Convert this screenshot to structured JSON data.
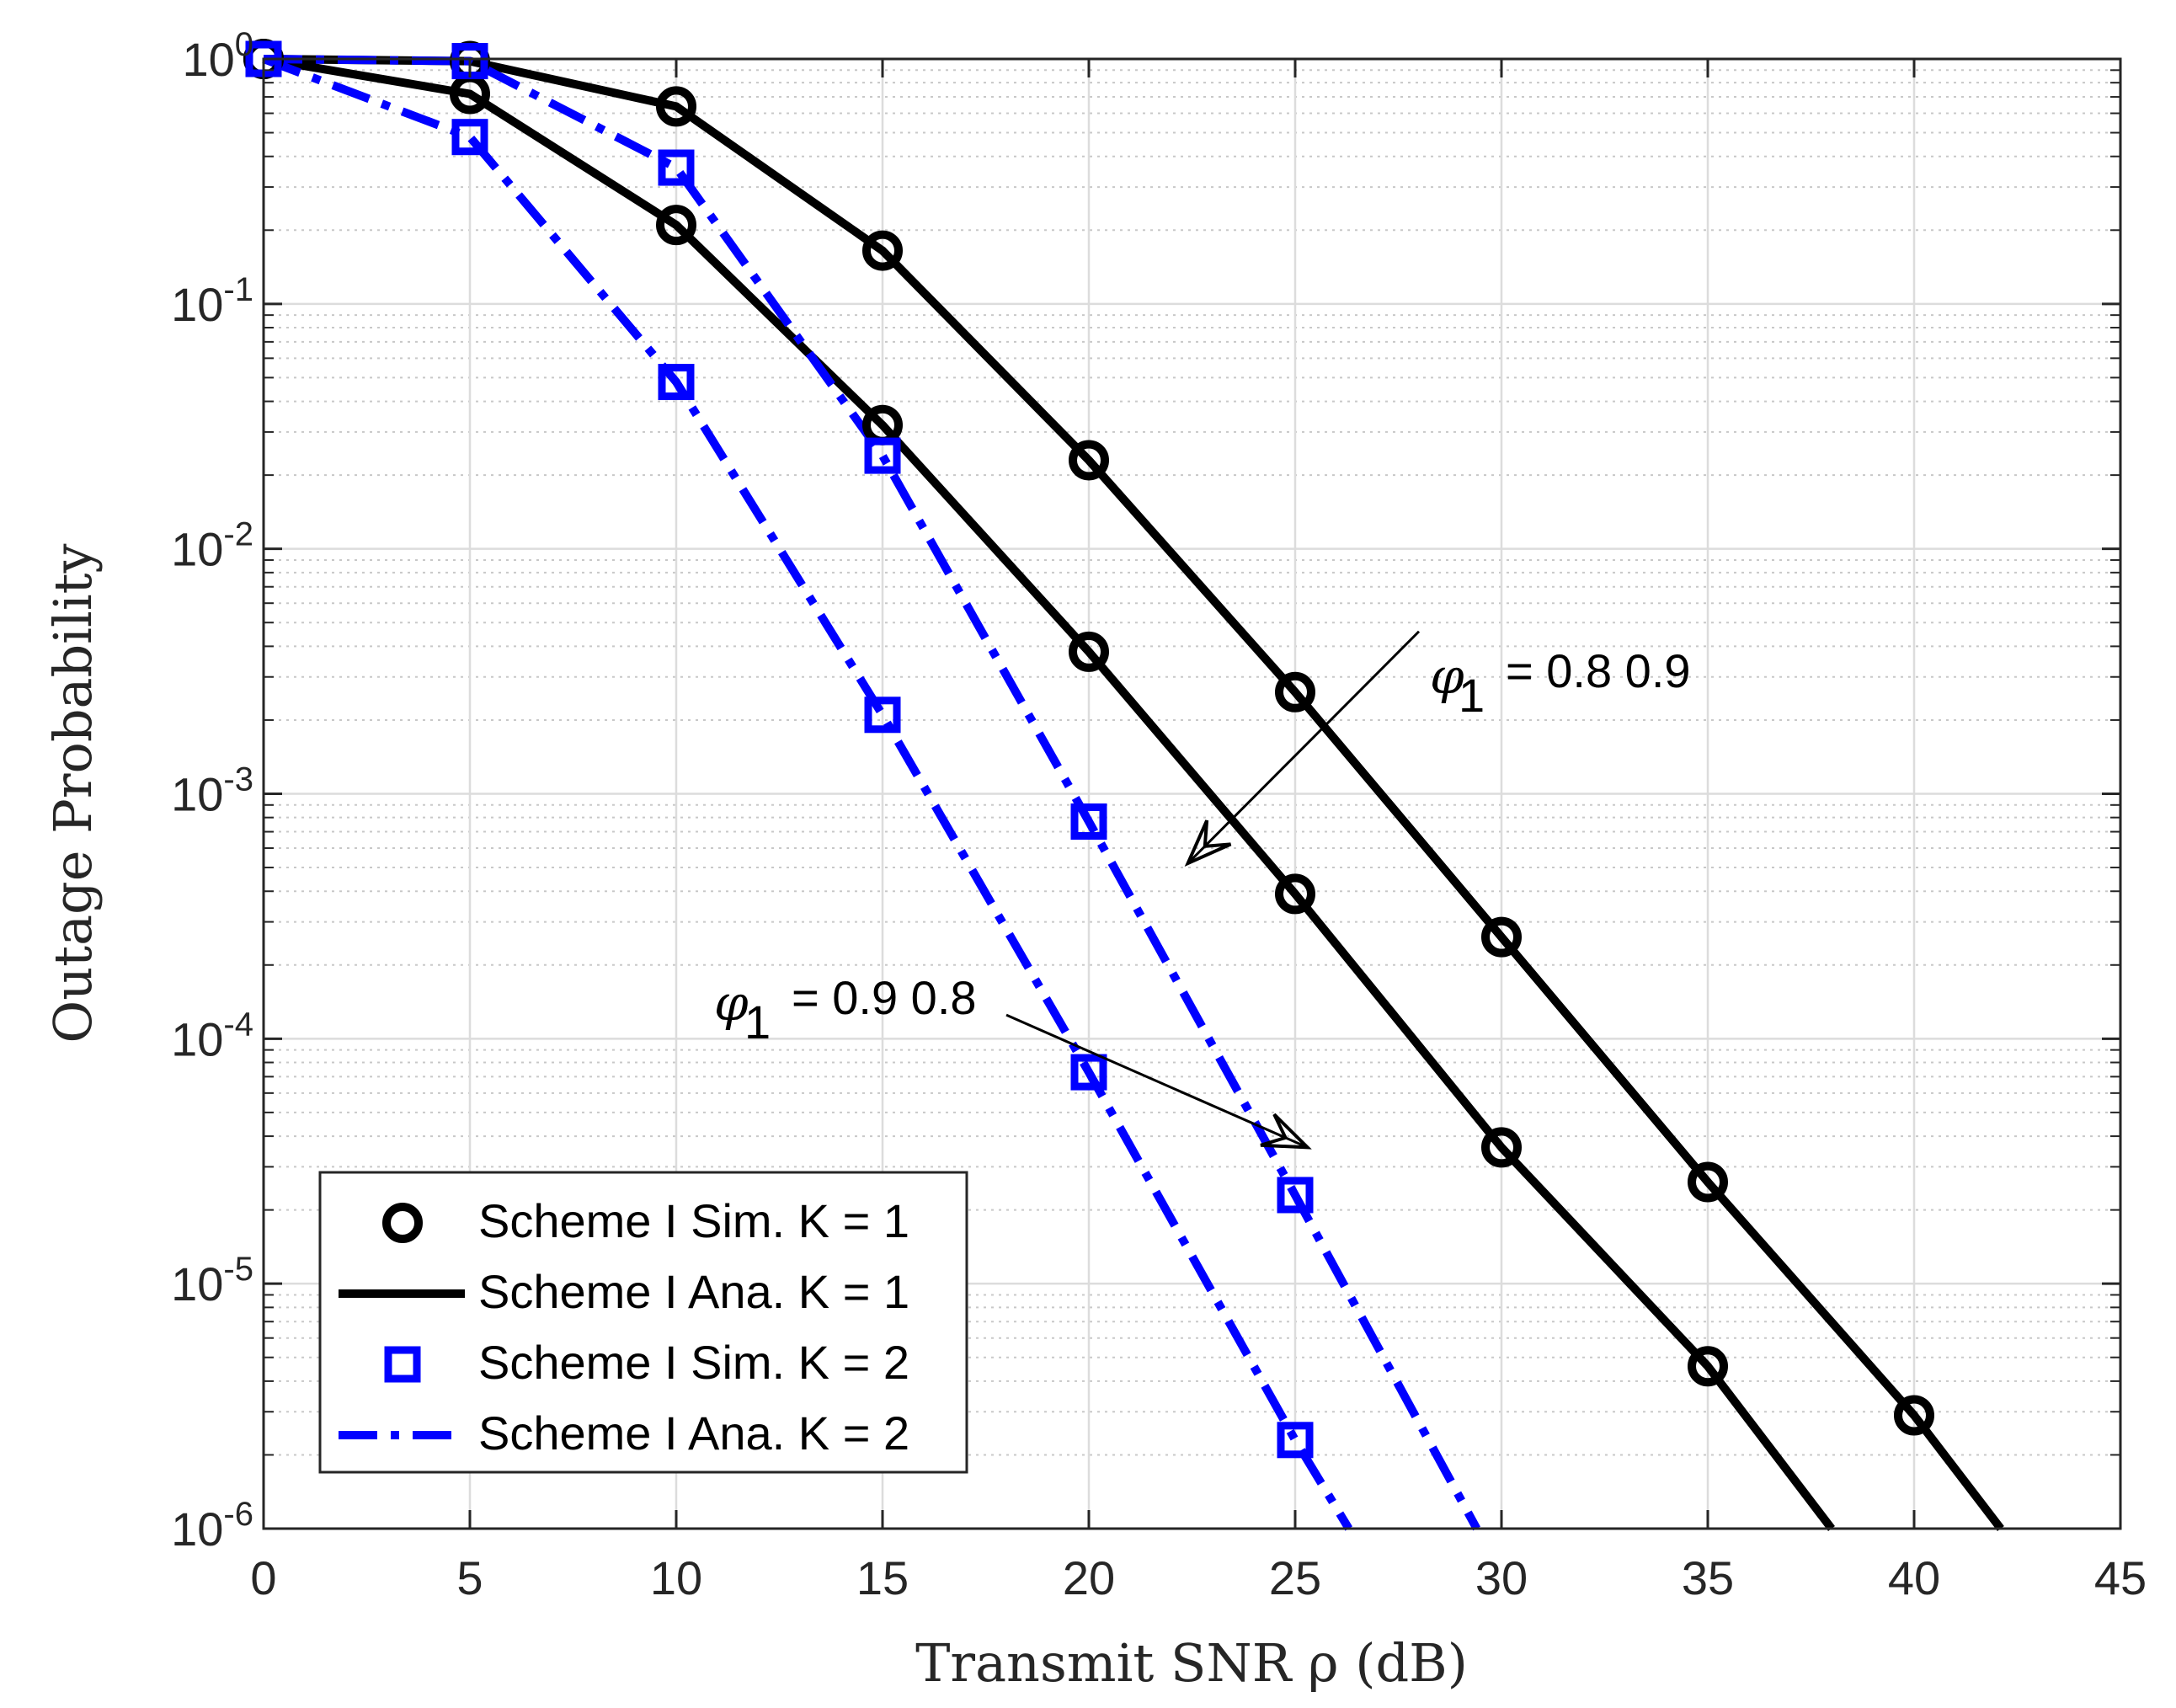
{
  "chart_data": {
    "type": "line",
    "title": "",
    "xlabel": "Transmit SNR ρ (dB)",
    "ylabel": "Outage Probability",
    "xlim": [
      0,
      45
    ],
    "ylim": [
      1e-06,
      1
    ],
    "yscale": "log",
    "grid": true,
    "minor_grid": true,
    "x_ticks": [
      "0",
      "5",
      "10",
      "15",
      "20",
      "25",
      "30",
      "35",
      "40",
      "45"
    ],
    "y_ticks": [
      {
        "base": "10",
        "exp": "0"
      },
      {
        "base": "10",
        "exp": "-1"
      },
      {
        "base": "10",
        "exp": "-2"
      },
      {
        "base": "10",
        "exp": "-3"
      },
      {
        "base": "10",
        "exp": "-4"
      },
      {
        "base": "10",
        "exp": "-5"
      },
      {
        "base": "10",
        "exp": "-6"
      }
    ],
    "series": [
      {
        "name": "Scheme I Sim. K = 1",
        "style": "marker-circle",
        "color": "#000000",
        "group": "phi1=0.8",
        "x": [
          0,
          5,
          10,
          15,
          20,
          25,
          30,
          35
        ],
        "y": [
          1.0,
          0.72,
          0.21,
          0.032,
          0.0038,
          0.00039,
          3.6e-05,
          4.6e-06
        ]
      },
      {
        "name": "Scheme I Sim. K = 1",
        "style": "marker-circle",
        "color": "#000000",
        "group": "phi1=0.9",
        "x": [
          0,
          5,
          10,
          15,
          20,
          25,
          30,
          35,
          40
        ],
        "y": [
          1.0,
          0.98,
          0.64,
          0.165,
          0.023,
          0.0026,
          0.00026,
          2.6e-05,
          2.9e-06
        ]
      },
      {
        "name": "Scheme I Ana. K = 1",
        "style": "solid",
        "color": "#000000",
        "group": "phi1=0.8",
        "x": [
          0,
          5,
          10,
          15,
          20,
          25,
          30,
          35,
          38
        ],
        "y": [
          1.0,
          0.72,
          0.21,
          0.032,
          0.0038,
          0.00039,
          3.6e-05,
          4.6e-06,
          1e-06
        ]
      },
      {
        "name": "Scheme I Ana. K = 1",
        "style": "solid",
        "color": "#000000",
        "group": "phi1=0.9",
        "x": [
          0,
          5,
          10,
          15,
          20,
          25,
          30,
          35,
          40,
          42.1
        ],
        "y": [
          1.0,
          0.98,
          0.64,
          0.165,
          0.023,
          0.0026,
          0.00026,
          2.6e-05,
          2.9e-06,
          1e-06
        ]
      },
      {
        "name": "Scheme I Sim. K = 2",
        "style": "marker-square",
        "color": "#0000ff",
        "group": "phi1=0.9",
        "x": [
          0,
          5,
          10,
          15,
          20,
          25
        ],
        "y": [
          1.0,
          0.48,
          0.048,
          0.0021,
          7.3e-05,
          2.3e-06
        ]
      },
      {
        "name": "Scheme I Sim. K = 2",
        "style": "marker-square",
        "color": "#0000ff",
        "group": "phi1=0.8",
        "x": [
          0,
          5,
          10,
          15,
          20,
          25
        ],
        "y": [
          1.0,
          0.98,
          0.36,
          0.024,
          0.00077,
          2.3e-05
        ]
      },
      {
        "name": "Scheme I Ana. K = 2",
        "style": "dashdot",
        "color": "#0000ff",
        "group": "phi1=0.9",
        "x": [
          0,
          5,
          10,
          15,
          20,
          25,
          26.3
        ],
        "y": [
          1.0,
          0.48,
          0.048,
          0.0021,
          7.3e-05,
          2.3e-06,
          1e-06
        ]
      },
      {
        "name": "Scheme I Ana. K = 2",
        "style": "dashdot",
        "color": "#0000ff",
        "group": "phi1=0.8",
        "x": [
          0,
          5,
          10,
          15,
          20,
          25,
          29.4
        ],
        "y": [
          1.0,
          0.98,
          0.36,
          0.024,
          0.00077,
          2.3e-05,
          1e-06
        ]
      }
    ],
    "legend": {
      "position": "bottom-left",
      "entries": [
        {
          "label": "Scheme I Sim. K = 1",
          "style": "marker-circle",
          "color": "#000000"
        },
        {
          "label": "Scheme I Ana. K = 1",
          "style": "solid",
          "color": "#000000"
        },
        {
          "label": "Scheme I Sim. K = 2",
          "style": "marker-square",
          "color": "#0000ff"
        },
        {
          "label": "Scheme I Ana. K = 2",
          "style": "dashdot",
          "color": "#0000ff"
        }
      ]
    },
    "annotations": [
      {
        "symbol": "φ",
        "subscript": "1",
        "text": "= 0.8 0.9",
        "label_at": [
          27.8,
          0.0026
        ],
        "arrow_from": [
          28,
          0.0046
        ],
        "arrow_to": [
          22.4,
          0.00052
        ]
      },
      {
        "symbol": "φ",
        "subscript": "1",
        "text": "= 0.9 0.8",
        "label_at": [
          11.0,
          0.000125
        ],
        "arrow_from": [
          18,
          0.000125
        ],
        "arrow_to": [
          25.3,
          3.6e-05
        ]
      }
    ]
  }
}
